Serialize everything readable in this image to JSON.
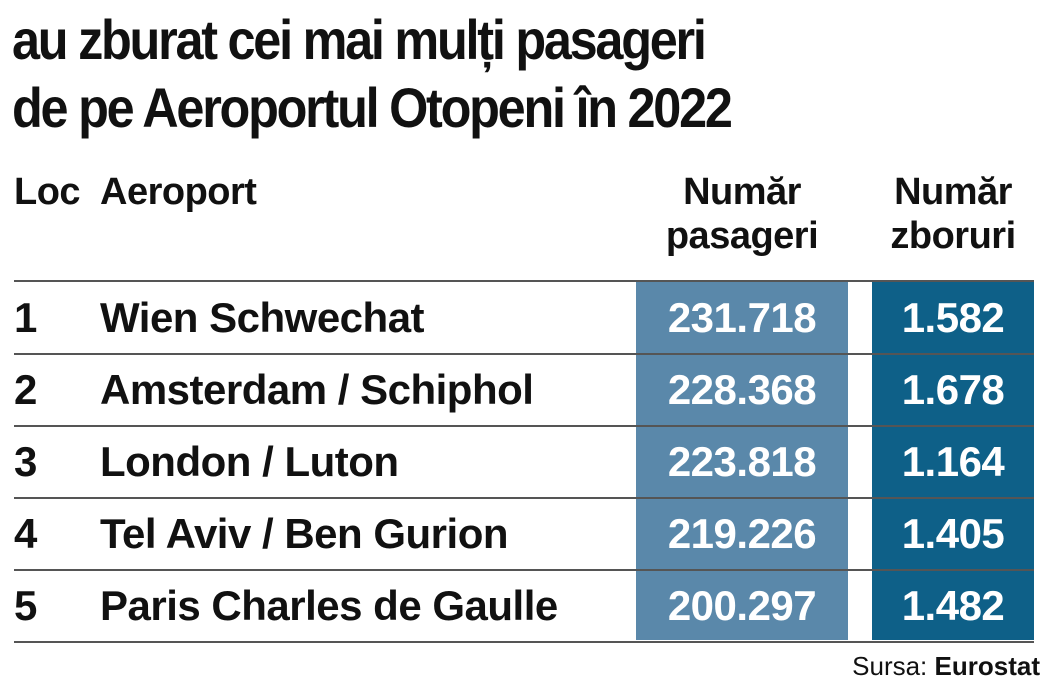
{
  "title": {
    "line1": "au zburat cei mai mulți pasageri",
    "line2": "de pe Aeroportul Otopeni în 2022"
  },
  "headers": {
    "rank": "Loc",
    "airport": "Aeroport",
    "passengers_line1": "Număr",
    "passengers_line2": "pasageri",
    "flights_line1": "Număr",
    "flights_line2": "zboruri"
  },
  "rows": [
    {
      "rank": "1",
      "airport": "Wien Schwechat",
      "passengers": "231.718",
      "flights": "1.582"
    },
    {
      "rank": "2",
      "airport": "Amsterdam / Schiphol",
      "passengers": "228.368",
      "flights": "1.678"
    },
    {
      "rank": "3",
      "airport": "London / Luton",
      "passengers": "223.818",
      "flights": "1.164"
    },
    {
      "rank": "4",
      "airport": "Tel Aviv / Ben Gurion",
      "passengers": "219.226",
      "flights": "1.405"
    },
    {
      "rank": "5",
      "airport": "Paris Charles de Gaulle",
      "passengers": "200.297",
      "flights": "1.482"
    }
  ],
  "source": {
    "label": "Sursa:",
    "name": "Eurostat"
  },
  "colors": {
    "passengers_column": "#5a88aa",
    "flights_column": "#0e6088",
    "text": "#111111",
    "rule": "#555555"
  }
}
